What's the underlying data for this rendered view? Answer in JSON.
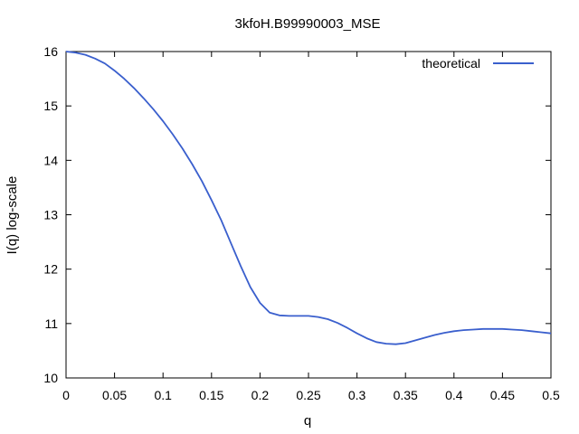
{
  "chart_data": {
    "type": "line",
    "title": "3kfoH.B99990003_MSE",
    "xlabel": "q",
    "ylabel": "I(q) log-scale",
    "xlim": [
      0,
      0.5
    ],
    "ylim": [
      10,
      16
    ],
    "xticks": [
      0,
      0.05,
      0.1,
      0.15,
      0.2,
      0.25,
      0.3,
      0.35,
      0.4,
      0.45,
      0.5
    ],
    "xtick_labels": [
      "0",
      "0.05",
      "0.1",
      "0.15",
      "0.2",
      "0.25",
      "0.3",
      "0.35",
      "0.4",
      "0.45",
      "0.5"
    ],
    "yticks": [
      10,
      11,
      12,
      13,
      14,
      15,
      16
    ],
    "ytick_labels": [
      "10",
      "11",
      "12",
      "13",
      "14",
      "15",
      "16"
    ],
    "grid": false,
    "legend_position": "top-right",
    "series": [
      {
        "name": "theoretical",
        "color": "#3a5fcd",
        "x": [
          0,
          0.01,
          0.02,
          0.03,
          0.04,
          0.05,
          0.06,
          0.07,
          0.08,
          0.09,
          0.1,
          0.11,
          0.12,
          0.13,
          0.14,
          0.15,
          0.16,
          0.17,
          0.18,
          0.19,
          0.2,
          0.21,
          0.22,
          0.23,
          0.24,
          0.25,
          0.26,
          0.27,
          0.28,
          0.29,
          0.3,
          0.31,
          0.32,
          0.33,
          0.34,
          0.35,
          0.36,
          0.37,
          0.38,
          0.39,
          0.4,
          0.41,
          0.42,
          0.43,
          0.44,
          0.45,
          0.46,
          0.47,
          0.48,
          0.49,
          0.5
        ],
        "y": [
          16.0,
          15.98,
          15.94,
          15.87,
          15.78,
          15.65,
          15.5,
          15.33,
          15.14,
          14.94,
          14.72,
          14.48,
          14.22,
          13.93,
          13.62,
          13.27,
          12.9,
          12.48,
          12.06,
          11.67,
          11.38,
          11.2,
          11.15,
          11.14,
          11.14,
          11.14,
          11.12,
          11.08,
          11.01,
          10.92,
          10.82,
          10.73,
          10.66,
          10.63,
          10.62,
          10.64,
          10.69,
          10.74,
          10.79,
          10.83,
          10.86,
          10.88,
          10.89,
          10.9,
          10.9,
          10.9,
          10.89,
          10.88,
          10.86,
          10.84,
          10.82
        ]
      }
    ]
  }
}
